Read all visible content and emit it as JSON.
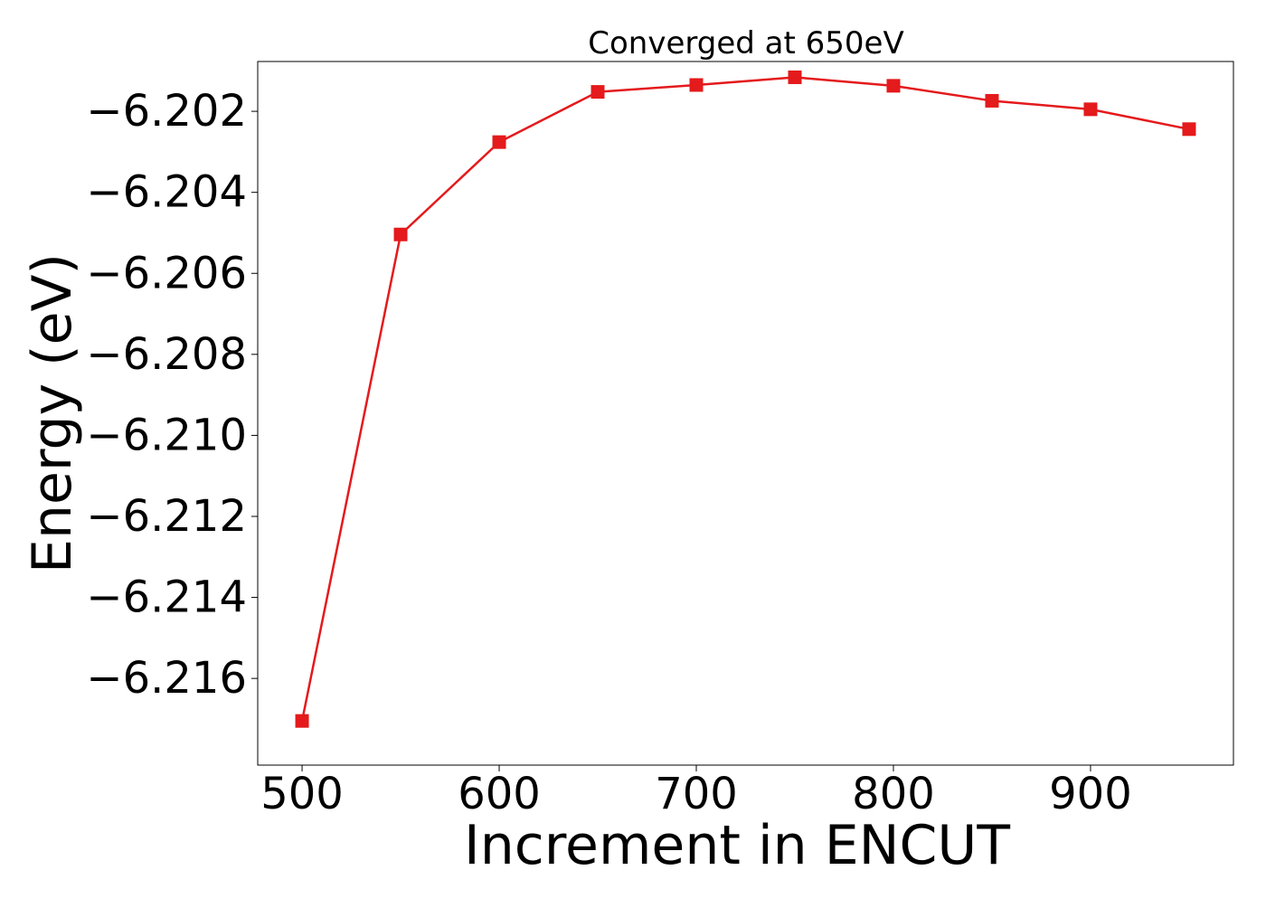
{
  "chart_data": {
    "type": "line",
    "title": "Converged at 650eV",
    "xlabel": "Increment in ENCUT",
    "ylabel": "Energy (eV)",
    "xlim": [
      477.5,
      972.5
    ],
    "ylim": [
      -6.21814,
      -6.20077
    ],
    "x_ticks": [
      500,
      600,
      700,
      800,
      900
    ],
    "x_tick_labels": [
      "500",
      "600",
      "700",
      "800",
      "900"
    ],
    "y_ticks": [
      -6.202,
      -6.204,
      -6.206,
      -6.208,
      -6.21,
      -6.212,
      -6.214,
      -6.216
    ],
    "y_tick_labels": [
      "−6.202",
      "−6.204",
      "−6.206",
      "−6.208",
      "−6.210",
      "−6.212",
      "−6.214",
      "−6.216"
    ],
    "grid": false,
    "legend": "none",
    "series": [
      {
        "color": "#e41a1c",
        "marker": "square",
        "x": [
          500,
          550,
          600,
          650,
          700,
          750,
          800,
          850,
          900,
          950
        ],
        "y": [
          -6.21705,
          -6.20504,
          -6.20276,
          -6.20152,
          -6.20135,
          -6.20116,
          -6.20137,
          -6.20174,
          -6.20195,
          -6.20244
        ]
      }
    ]
  }
}
